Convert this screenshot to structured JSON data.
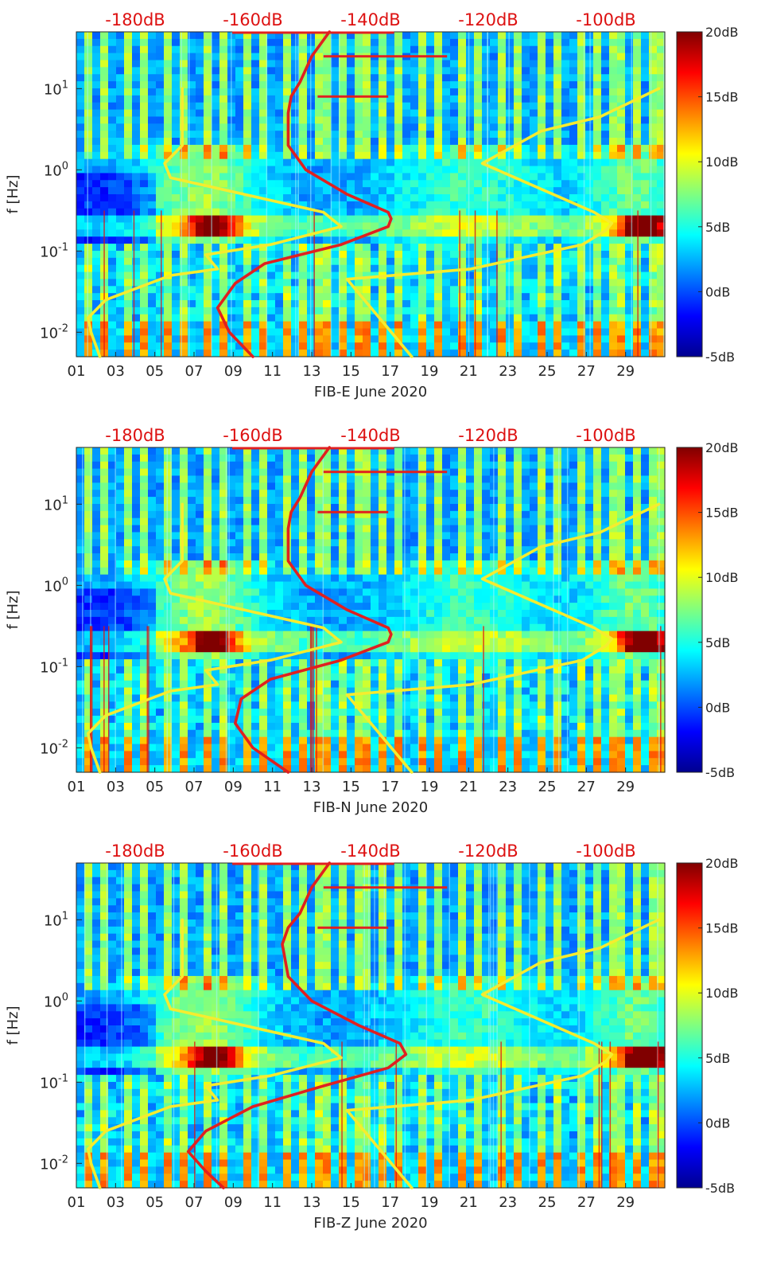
{
  "figure": {
    "description_free": true,
    "colors": {
      "top_db_labels": "#dd1111",
      "red_curve": "#e02020",
      "yellow_curve": "#f5ec2f",
      "axis": "#262626"
    }
  },
  "chart_data": [
    {
      "type": "heatmap",
      "title": "",
      "xlabel": "FIB-E June 2020",
      "ylabel": "f [Hz]",
      "x_ticks": [
        "01",
        "03",
        "05",
        "07",
        "09",
        "11",
        "13",
        "15",
        "17",
        "19",
        "21",
        "23",
        "25",
        "27",
        "29"
      ],
      "x_range_days": [
        1,
        31
      ],
      "y_scale": "log",
      "y_range_hz": [
        0.005,
        50
      ],
      "y_ticks": [
        {
          "value": 0.01,
          "base": "10",
          "exp": "-2"
        },
        {
          "value": 0.1,
          "base": "10",
          "exp": "-1"
        },
        {
          "value": 1,
          "base": "10",
          "exp": "0"
        },
        {
          "value": 10,
          "base": "10",
          "exp": "1"
        }
      ],
      "top_axis_labels": [
        "-180dB",
        "-160dB",
        "-140dB",
        "-120dB",
        "-100dB"
      ],
      "top_axis_range_db": [
        -190,
        -90
      ],
      "colorbar": {
        "range_db": [
          -5,
          20
        ],
        "ticks": [
          "20dB",
          "15dB",
          "10dB",
          "5dB",
          "0dB",
          "-5dB"
        ]
      },
      "series": [
        {
          "name": "red-noise-model-curve",
          "color": "red",
          "points": [
            [
              -147,
              50
            ],
            [
              -150,
              25
            ],
            [
              -152,
              12
            ],
            [
              -153.5,
              8
            ],
            [
              -154,
              5
            ],
            [
              -154,
              2
            ],
            [
              -151,
              1
            ],
            [
              -144,
              0.5
            ],
            [
              -137,
              0.3
            ],
            [
              -136.5,
              0.25
            ],
            [
              -137,
              0.2
            ],
            [
              -145,
              0.12
            ],
            [
              -158,
              0.07
            ],
            [
              -163,
              0.04
            ],
            [
              -166,
              0.02
            ],
            [
              -164,
              0.01
            ],
            [
              -160,
              0.005
            ]
          ]
        },
        {
          "name": "yellow-low-noise-model",
          "color": "yellow",
          "points": [
            [
              -186,
              0.005
            ],
            [
              -187.5,
              0.01
            ],
            [
              -188,
              0.015
            ],
            [
              -185,
              0.025
            ],
            [
              -174,
              0.05
            ],
            [
              -166,
              0.06
            ],
            [
              -168,
              0.09
            ],
            [
              -157,
              0.12
            ],
            [
              -145,
              0.2
            ],
            [
              -148,
              0.3
            ],
            [
              -174,
              0.8
            ],
            [
              -175,
              1.2
            ],
            [
              -172,
              2
            ],
            [
              -172,
              10
            ]
          ]
        },
        {
          "name": "yellow-high-noise-model",
          "color": "yellow",
          "points": [
            [
              -133,
              0.005
            ],
            [
              -144,
              0.045
            ],
            [
              -123,
              0.06
            ],
            [
              -104,
              0.12
            ],
            [
              -100,
              0.18
            ],
            [
              -99,
              0.22
            ],
            [
              -102,
              0.3
            ],
            [
              -121,
              1.2
            ],
            [
              -111,
              3
            ],
            [
              -101,
              4.5
            ],
            [
              -91,
              10
            ]
          ]
        }
      ]
    },
    {
      "type": "heatmap",
      "title": "",
      "xlabel": "FIB-N June 2020",
      "ylabel": "f [Hz]",
      "x_ticks": [
        "01",
        "03",
        "05",
        "07",
        "09",
        "11",
        "13",
        "15",
        "17",
        "19",
        "21",
        "23",
        "25",
        "27",
        "29"
      ],
      "x_range_days": [
        1,
        31
      ],
      "y_scale": "log",
      "y_range_hz": [
        0.005,
        50
      ],
      "y_ticks": [
        {
          "value": 0.01,
          "base": "10",
          "exp": "-2"
        },
        {
          "value": 0.1,
          "base": "10",
          "exp": "-1"
        },
        {
          "value": 1,
          "base": "10",
          "exp": "0"
        },
        {
          "value": 10,
          "base": "10",
          "exp": "1"
        }
      ],
      "top_axis_labels": [
        "-180dB",
        "-160dB",
        "-140dB",
        "-120dB",
        "-100dB"
      ],
      "top_axis_range_db": [
        -190,
        -90
      ],
      "colorbar": {
        "range_db": [
          -5,
          20
        ],
        "ticks": [
          "20dB",
          "15dB",
          "10dB",
          "5dB",
          "0dB",
          "-5dB"
        ]
      },
      "series": [
        {
          "name": "red-noise-model-curve",
          "color": "red",
          "points": [
            [
              -147,
              50
            ],
            [
              -150,
              25
            ],
            [
              -152,
              12
            ],
            [
              -153.5,
              8
            ],
            [
              -154,
              5
            ],
            [
              -154,
              2
            ],
            [
              -151,
              1
            ],
            [
              -144,
              0.5
            ],
            [
              -137,
              0.3
            ],
            [
              -136.5,
              0.25
            ],
            [
              -137,
              0.2
            ],
            [
              -145,
              0.12
            ],
            [
              -157,
              0.07
            ],
            [
              -162,
              0.04
            ],
            [
              -163,
              0.02
            ],
            [
              -160,
              0.01
            ],
            [
              -154,
              0.005
            ]
          ]
        },
        {
          "name": "yellow-low-noise-model",
          "color": "yellow",
          "points": [
            [
              -186,
              0.005
            ],
            [
              -187.5,
              0.01
            ],
            [
              -188,
              0.015
            ],
            [
              -185,
              0.025
            ],
            [
              -174,
              0.05
            ],
            [
              -166,
              0.06
            ],
            [
              -168,
              0.09
            ],
            [
              -157,
              0.12
            ],
            [
              -145,
              0.2
            ],
            [
              -148,
              0.3
            ],
            [
              -174,
              0.8
            ],
            [
              -175,
              1.2
            ],
            [
              -172,
              2
            ],
            [
              -172,
              10
            ]
          ]
        },
        {
          "name": "yellow-high-noise-model",
          "color": "yellow",
          "points": [
            [
              -133,
              0.005
            ],
            [
              -144,
              0.045
            ],
            [
              -123,
              0.06
            ],
            [
              -104,
              0.12
            ],
            [
              -100,
              0.18
            ],
            [
              -99,
              0.22
            ],
            [
              -102,
              0.3
            ],
            [
              -121,
              1.2
            ],
            [
              -111,
              3
            ],
            [
              -101,
              4.5
            ],
            [
              -91,
              10
            ]
          ]
        }
      ]
    },
    {
      "type": "heatmap",
      "title": "",
      "xlabel": "FIB-Z June 2020",
      "ylabel": "f [Hz]",
      "x_ticks": [
        "01",
        "03",
        "05",
        "07",
        "09",
        "11",
        "13",
        "15",
        "17",
        "19",
        "21",
        "23",
        "25",
        "27",
        "29"
      ],
      "x_range_days": [
        1,
        31
      ],
      "y_scale": "log",
      "y_range_hz": [
        0.005,
        50
      ],
      "y_ticks": [
        {
          "value": 0.01,
          "base": "10",
          "exp": "-2"
        },
        {
          "value": 0.1,
          "base": "10",
          "exp": "-1"
        },
        {
          "value": 1,
          "base": "10",
          "exp": "0"
        },
        {
          "value": 10,
          "base": "10",
          "exp": "1"
        }
      ],
      "top_axis_labels": [
        "-180dB",
        "-160dB",
        "-140dB",
        "-120dB",
        "-100dB"
      ],
      "top_axis_range_db": [
        -190,
        -90
      ],
      "colorbar": {
        "range_db": [
          -5,
          20
        ],
        "ticks": [
          "20dB",
          "15dB",
          "10dB",
          "5dB",
          "0dB",
          "-5dB"
        ]
      },
      "series": [
        {
          "name": "red-noise-model-curve",
          "color": "red",
          "points": [
            [
              -147,
              50
            ],
            [
              -150,
              25
            ],
            [
              -152,
              12
            ],
            [
              -154,
              8
            ],
            [
              -155,
              5
            ],
            [
              -154,
              2
            ],
            [
              -150,
              1
            ],
            [
              -142,
              0.5
            ],
            [
              -135,
              0.3
            ],
            [
              -134,
              0.22
            ],
            [
              -137,
              0.15
            ],
            [
              -148,
              0.09
            ],
            [
              -160,
              0.05
            ],
            [
              -168,
              0.025
            ],
            [
              -171,
              0.014
            ],
            [
              -168,
              0.008
            ],
            [
              -165,
              0.005
            ]
          ]
        },
        {
          "name": "yellow-low-noise-model",
          "color": "yellow",
          "points": [
            [
              -186,
              0.005
            ],
            [
              -187.5,
              0.01
            ],
            [
              -188,
              0.015
            ],
            [
              -185,
              0.025
            ],
            [
              -174,
              0.05
            ],
            [
              -166,
              0.06
            ],
            [
              -168,
              0.09
            ],
            [
              -157,
              0.12
            ],
            [
              -145,
              0.2
            ],
            [
              -148,
              0.3
            ],
            [
              -174,
              0.8
            ],
            [
              -175,
              1.2
            ],
            [
              -172,
              2
            ],
            [
              -172,
              10
            ]
          ]
        },
        {
          "name": "yellow-high-noise-model",
          "color": "yellow",
          "points": [
            [
              -133,
              0.005
            ],
            [
              -144,
              0.045
            ],
            [
              -123,
              0.06
            ],
            [
              -104,
              0.12
            ],
            [
              -100,
              0.18
            ],
            [
              -99,
              0.22
            ],
            [
              -102,
              0.3
            ],
            [
              -121,
              1.2
            ],
            [
              -111,
              3
            ],
            [
              -101,
              4.5
            ],
            [
              -91,
              10
            ]
          ]
        }
      ]
    }
  ]
}
